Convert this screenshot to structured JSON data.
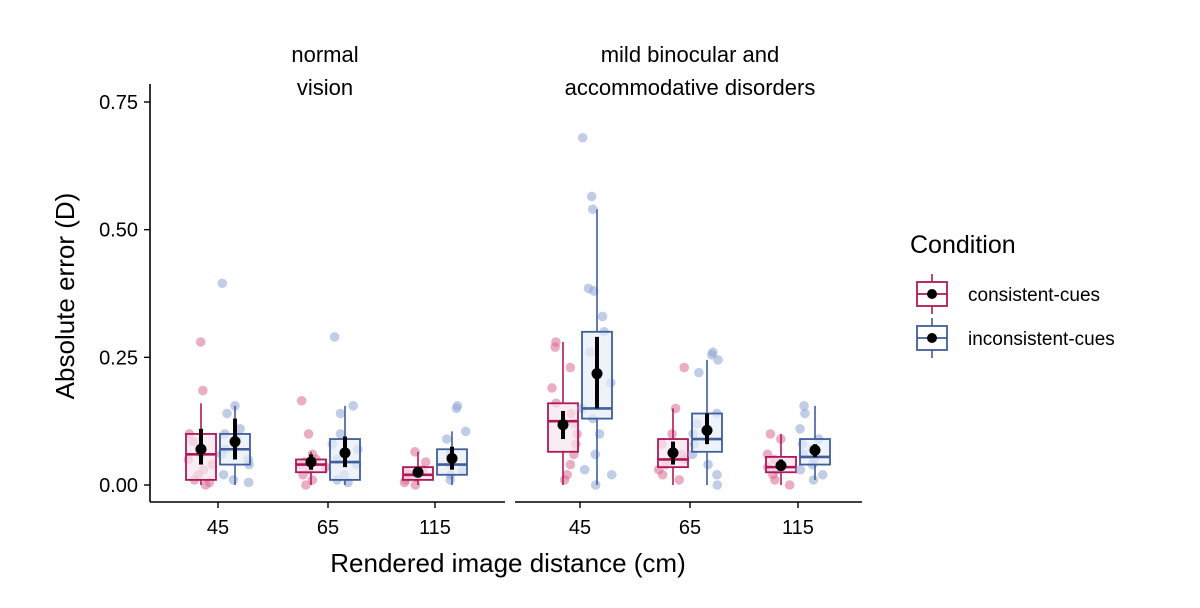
{
  "chart_data": {
    "type": "box",
    "ylabel": "Absolute error (D)",
    "xlabel": "Rendered image distance (cm)",
    "ylim": [
      -0.03,
      0.78
    ],
    "yticks": [
      "0.00",
      "0.25",
      "0.50",
      "0.75"
    ],
    "grid": false,
    "legend_position": "right",
    "legend": {
      "title": "Condition",
      "entries": [
        {
          "name": "consistent-cues",
          "color": "#b0175a",
          "point_color": "#d96a93",
          "fill": "#f7e6ee"
        },
        {
          "name": "inconsistent-cues",
          "color": "#3f5e9b",
          "point_color": "#8ea3d4",
          "fill": "#e7edf7"
        }
      ]
    },
    "categories": [
      "45",
      "65",
      "115"
    ],
    "panels": [
      {
        "title_lines": [
          "normal",
          "vision"
        ],
        "groups": [
          {
            "category": "45",
            "boxes": [
              {
                "series": "consistent-cues",
                "q1": 0.01,
                "median": 0.06,
                "q3": 0.1,
                "whisker_low": 0.0,
                "whisker_high": 0.16,
                "mean": 0.07,
                "ci": [
                  0.04,
                  0.11
                ],
                "points": [
                  0.28,
                  0.185,
                  0.1,
                  0.085,
                  0.07,
                  0.06,
                  0.05,
                  0.04,
                  0.03,
                  0.02,
                  0.01,
                  0.005,
                  0.0
                ]
              },
              {
                "series": "inconsistent-cues",
                "q1": 0.04,
                "median": 0.07,
                "q3": 0.1,
                "whisker_low": 0.0,
                "whisker_high": 0.155,
                "mean": 0.085,
                "ci": [
                  0.05,
                  0.13
                ],
                "points": [
                  0.395,
                  0.155,
                  0.14,
                  0.11,
                  0.1,
                  0.09,
                  0.08,
                  0.07,
                  0.06,
                  0.05,
                  0.04,
                  0.02,
                  0.01,
                  0.005
                ]
              }
            ]
          },
          {
            "category": "65",
            "boxes": [
              {
                "series": "consistent-cues",
                "q1": 0.025,
                "median": 0.04,
                "q3": 0.05,
                "whisker_low": 0.0,
                "whisker_high": 0.065,
                "mean": 0.045,
                "ci": [
                  0.03,
                  0.06
                ],
                "points": [
                  0.165,
                  0.1,
                  0.06,
                  0.05,
                  0.045,
                  0.04,
                  0.035,
                  0.03,
                  0.02,
                  0.01,
                  0.0
                ]
              },
              {
                "series": "inconsistent-cues",
                "q1": 0.01,
                "median": 0.045,
                "q3": 0.09,
                "whisker_low": 0.0,
                "whisker_high": 0.155,
                "mean": 0.063,
                "ci": [
                  0.035,
                  0.095
                ],
                "points": [
                  0.29,
                  0.155,
                  0.14,
                  0.1,
                  0.08,
                  0.07,
                  0.05,
                  0.04,
                  0.02,
                  0.01,
                  0.005
                ]
              }
            ]
          },
          {
            "category": "115",
            "boxes": [
              {
                "series": "consistent-cues",
                "q1": 0.01,
                "median": 0.02,
                "q3": 0.035,
                "whisker_low": 0.0,
                "whisker_high": 0.065,
                "mean": 0.025,
                "ci": [
                  0.015,
                  0.035
                ],
                "points": [
                  0.065,
                  0.045,
                  0.03,
                  0.025,
                  0.02,
                  0.015,
                  0.01,
                  0.005,
                  0.0
                ]
              },
              {
                "series": "inconsistent-cues",
                "q1": 0.02,
                "median": 0.04,
                "q3": 0.07,
                "whisker_low": 0.0,
                "whisker_high": 0.105,
                "mean": 0.052,
                "ci": [
                  0.03,
                  0.075
                ],
                "points": [
                  0.155,
                  0.15,
                  0.105,
                  0.09,
                  0.06,
                  0.05,
                  0.04,
                  0.03,
                  0.02,
                  0.01
                ]
              }
            ]
          }
        ]
      },
      {
        "title_lines": [
          "mild binocular and",
          "accommodative disorders"
        ],
        "groups": [
          {
            "category": "45",
            "boxes": [
              {
                "series": "consistent-cues",
                "q1": 0.065,
                "median": 0.125,
                "q3": 0.16,
                "whisker_low": 0.0,
                "whisker_high": 0.28,
                "mean": 0.118,
                "ci": [
                  0.09,
                  0.145
                ],
                "points": [
                  0.28,
                  0.27,
                  0.23,
                  0.19,
                  0.16,
                  0.14,
                  0.12,
                  0.1,
                  0.08,
                  0.06,
                  0.04,
                  0.02,
                  0.01
                ]
              },
              {
                "series": "inconsistent-cues",
                "q1": 0.13,
                "median": 0.15,
                "q3": 0.3,
                "whisker_low": 0.0,
                "whisker_high": 0.54,
                "mean": 0.218,
                "ci": [
                  0.15,
                  0.29
                ],
                "points": [
                  0.68,
                  0.565,
                  0.54,
                  0.385,
                  0.38,
                  0.33,
                  0.3,
                  0.26,
                  0.2,
                  0.15,
                  0.13,
                  0.1,
                  0.06,
                  0.03,
                  0.02,
                  0.0
                ]
              }
            ]
          },
          {
            "category": "65",
            "boxes": [
              {
                "series": "consistent-cues",
                "q1": 0.035,
                "median": 0.05,
                "q3": 0.09,
                "whisker_low": 0.0,
                "whisker_high": 0.15,
                "mean": 0.063,
                "ci": [
                  0.04,
                  0.085
                ],
                "points": [
                  0.23,
                  0.15,
                  0.1,
                  0.08,
                  0.06,
                  0.05,
                  0.04,
                  0.03,
                  0.02,
                  0.01
                ]
              },
              {
                "series": "inconsistent-cues",
                "q1": 0.065,
                "median": 0.09,
                "q3": 0.14,
                "whisker_low": 0.0,
                "whisker_high": 0.245,
                "mean": 0.107,
                "ci": [
                  0.08,
                  0.14
                ],
                "points": [
                  0.26,
                  0.255,
                  0.245,
                  0.22,
                  0.14,
                  0.12,
                  0.1,
                  0.08,
                  0.06,
                  0.04,
                  0.02,
                  0.0
                ]
              }
            ]
          },
          {
            "category": "115",
            "boxes": [
              {
                "series": "consistent-cues",
                "q1": 0.025,
                "median": 0.035,
                "q3": 0.055,
                "whisker_low": 0.0,
                "whisker_high": 0.1,
                "mean": 0.038,
                "ci": [
                  0.028,
                  0.05
                ],
                "points": [
                  0.1,
                  0.09,
                  0.06,
                  0.05,
                  0.04,
                  0.035,
                  0.03,
                  0.02,
                  0.01,
                  0.0
                ]
              },
              {
                "series": "inconsistent-cues",
                "q1": 0.04,
                "median": 0.055,
                "q3": 0.09,
                "whisker_low": 0.01,
                "whisker_high": 0.155,
                "mean": 0.068,
                "ci": [
                  0.055,
                  0.08
                ],
                "points": [
                  0.155,
                  0.14,
                  0.11,
                  0.09,
                  0.08,
                  0.07,
                  0.06,
                  0.05,
                  0.04,
                  0.03,
                  0.02,
                  0.01
                ]
              }
            ]
          }
        ]
      }
    ]
  }
}
